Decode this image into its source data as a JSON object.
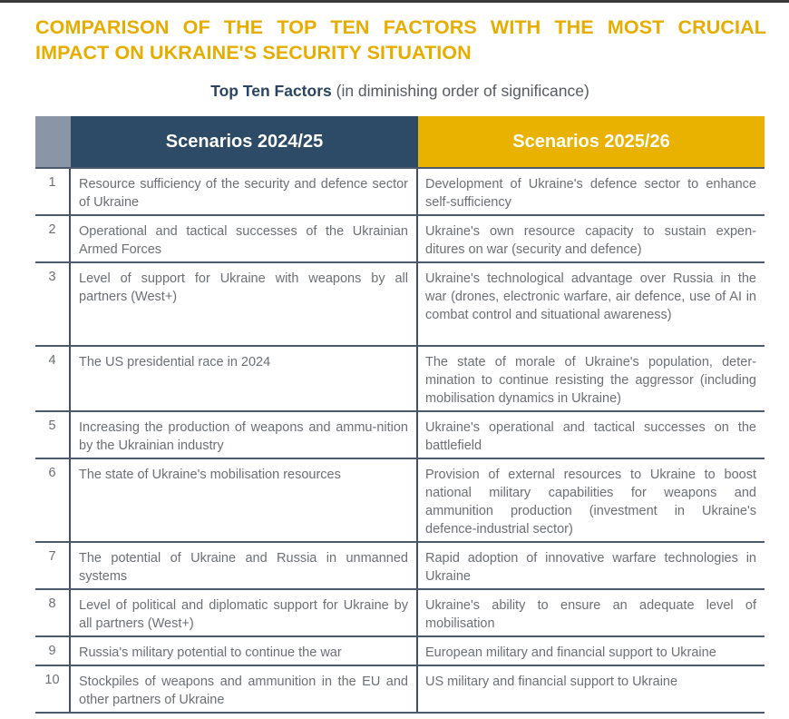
{
  "title": "COMPARISON OF THE TOP TEN FACTORS WITH THE MOST CRUCIAL IMPACT ON UKRAINE'S SECURITY SITUATION",
  "subtitle": {
    "bold": "Top Ten Factors",
    "normal": " (in diminishing order of significance)"
  },
  "table": {
    "headers": {
      "number": "",
      "col1": "Scenarios 2024/25",
      "col2": "Scenarios 2025/26"
    },
    "colors": {
      "col1_header": "#2d4a66",
      "col2_header": "#e9b200",
      "number_header": "#8a95a8",
      "title": "#e6ad00"
    },
    "rows": [
      {
        "n": "1",
        "a": "Resource sufficiency of the security and defence sector of Ukraine",
        "b": "Development of Ukraine's defence sector to enhance self-sufficiency",
        "h": 52
      },
      {
        "n": "2",
        "a": "Operational and tactical successes of the Ukrainian Armed Forces",
        "b": "Ukraine's own resource capacity to sustain expen-ditures on war (security and defence)",
        "h": 52
      },
      {
        "n": "3",
        "a": "Level of support for Ukraine with weapons by all partners (West+)",
        "b": "Ukraine's technological advantage over Russia in the war (drones, electronic warfare, air defence, use of AI in combat control and situational awareness)",
        "h": 92
      },
      {
        "n": "4",
        "a": "The US presidential race in 2024",
        "b": "The state of morale of Ukraine's population, deter-mination to continue resisting the aggressor (including mobilisation dynamics in Ukraine)",
        "h": 72
      },
      {
        "n": "5",
        "a": "Increasing the production of weapons and ammu-nition by the Ukrainian industry",
        "b": "Ukraine's operational and tactical successes on the battlefield",
        "h": 52
      },
      {
        "n": "6",
        "a": "The state of Ukraine's mobilisation resources",
        "b": "Provision of external resources to Ukraine to boost national military capabilities for weapons and ammunition production (investment in Ukraine's defence-industrial sector)",
        "h": 92
      },
      {
        "n": "7",
        "a": "The potential of Ukraine and Russia in unmanned systems",
        "b": "Rapid adoption of innovative warfare technologies in Ukraine",
        "h": 52
      },
      {
        "n": "8",
        "a": "Level of political and diplomatic support for Ukraine by all partners (West+)",
        "b": "Ukraine's ability to ensure an adequate level of mobilisation",
        "h": 52
      },
      {
        "n": "9",
        "a": "Russia's military potential to continue the war",
        "b": "European military and financial support to Ukraine",
        "h": 32
      },
      {
        "n": "10",
        "a": "Stockpiles of weapons and ammunition in the EU and other partners of Ukraine",
        "b": "US military and financial support to Ukraine",
        "h": 52
      }
    ]
  }
}
